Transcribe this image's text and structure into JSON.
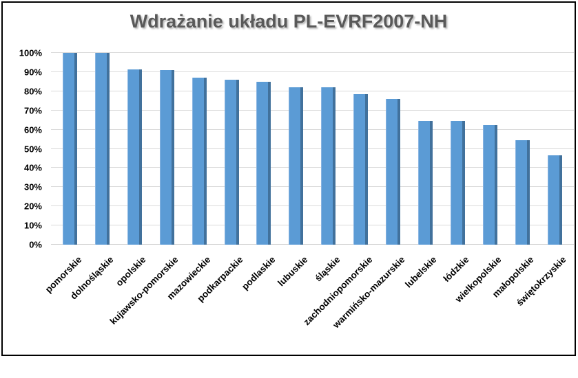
{
  "window": {
    "background": "#ffffff",
    "border_color": "#000000"
  },
  "chart_data": {
    "type": "bar",
    "title": "Wdrażanie układu PL-EVRF2007-NH",
    "title_color": "#595959",
    "categories": [
      "pomorskie",
      "dolnośląskie",
      "opolskie",
      "kujawsko-pomorskie",
      "mazowieckie",
      "podkarpackie",
      "podlaskie",
      "lubuskie",
      "śląskie",
      "zachodniopomorskie",
      "warmińsko-mazurskie",
      "lubelskie",
      "łódzkie",
      "wielkopolskie",
      "małopolskie",
      "świętokrzyskie"
    ],
    "values": [
      100,
      100,
      91.5,
      91,
      87,
      86,
      85,
      82,
      82,
      78.5,
      76,
      64.5,
      64.5,
      62.5,
      54.5,
      46.5
    ],
    "value_unit": "%",
    "xlabel": "",
    "ylabel": "",
    "ylim": [
      0,
      100
    ],
    "ytick_step": 10,
    "yticks": [
      "0%",
      "10%",
      "20%",
      "30%",
      "40%",
      "50%",
      "60%",
      "70%",
      "80%",
      "90%",
      "100%"
    ],
    "grid": true,
    "legend": false,
    "category_label_rotation_deg": 45,
    "bar_fill_color": "#5B9BD5",
    "bar_edge_color": "#41719C",
    "bar_highlight_color": "#8AB5E2",
    "gridline_color": "#D9D9D9",
    "axis_label_color": "#000000"
  }
}
